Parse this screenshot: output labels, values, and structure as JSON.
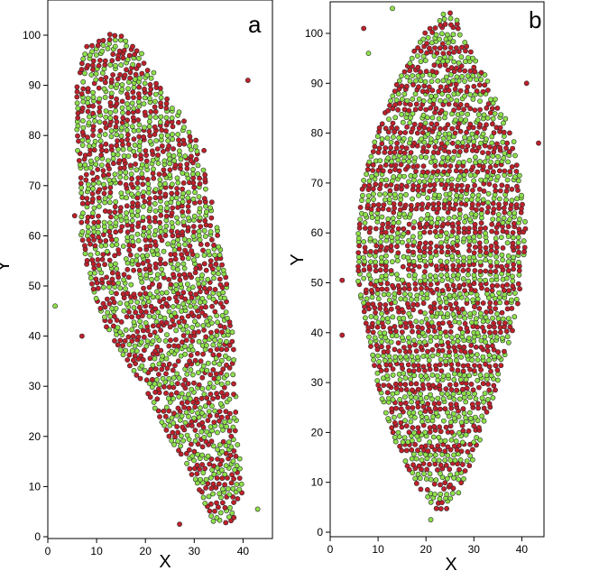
{
  "chart_data": [
    {
      "type": "scatter",
      "panel_label": "a",
      "xlabel": "X",
      "ylabel": "Y",
      "xlim": [
        0,
        45
      ],
      "ylim": [
        0,
        107
      ],
      "x_ticks": [
        0,
        10,
        20,
        30,
        40
      ],
      "y_ticks": [
        0,
        10,
        20,
        30,
        40,
        50,
        60,
        70,
        80,
        90,
        100
      ],
      "grid": false,
      "colors": {
        "red": "#c0202a",
        "green": "#8ee04a",
        "edge": "#2a2a2a"
      },
      "outliers": [
        {
          "x": 1.5,
          "y": 46,
          "color": "green"
        },
        {
          "x": 7,
          "y": 40,
          "color": "red"
        },
        {
          "x": 5.5,
          "y": 64,
          "color": "red"
        },
        {
          "x": 41,
          "y": 91,
          "color": "red"
        },
        {
          "x": 43,
          "y": 5.5,
          "color": "green"
        },
        {
          "x": 27,
          "y": 2.5,
          "color": "red"
        },
        {
          "x": 32,
          "y": 77,
          "color": "red"
        }
      ],
      "band_outline": {
        "y_levels": [
          3,
          10,
          20,
          30,
          40,
          50,
          60,
          70,
          80,
          90,
          98,
          100
        ],
        "x_left": [
          34,
          31,
          25,
          20,
          13,
          9,
          7,
          7,
          6,
          6,
          8,
          13
        ],
        "x_right": [
          38,
          40,
          39,
          38.5,
          38,
          37,
          35,
          33,
          30,
          23,
          18,
          15
        ]
      }
    },
    {
      "type": "scatter",
      "panel_label": "b",
      "xlabel": "X",
      "ylabel": "Y",
      "xlim": [
        0,
        45
      ],
      "ylim": [
        0,
        107
      ],
      "x_ticks": [
        0,
        10,
        20,
        30,
        40
      ],
      "y_ticks": [
        0,
        10,
        20,
        30,
        40,
        50,
        60,
        70,
        80,
        90,
        100
      ],
      "grid": false,
      "colors": {
        "red": "#c0202a",
        "green": "#8ee04a",
        "edge": "#2a2a2a"
      },
      "outliers": [
        {
          "x": 2.5,
          "y": 39.5,
          "color": "red"
        },
        {
          "x": 2.5,
          "y": 50.5,
          "color": "red"
        },
        {
          "x": 7,
          "y": 101,
          "color": "red"
        },
        {
          "x": 8,
          "y": 96,
          "color": "green"
        },
        {
          "x": 13,
          "y": 105,
          "color": "green"
        },
        {
          "x": 43.5,
          "y": 78,
          "color": "red"
        },
        {
          "x": 41,
          "y": 90,
          "color": "red"
        },
        {
          "x": 21,
          "y": 2.5,
          "color": "green"
        }
      ],
      "band_outline": {
        "y_levels": [
          5,
          10,
          20,
          30,
          40,
          50,
          60,
          70,
          80,
          90,
          100,
          104
        ],
        "x_left": [
          22,
          18,
          13,
          10,
          8,
          6,
          6,
          7,
          10,
          14,
          20,
          24
        ],
        "x_right": [
          25,
          28,
          32,
          35,
          38,
          40,
          41,
          40,
          38,
          33,
          28,
          26
        ]
      }
    }
  ]
}
